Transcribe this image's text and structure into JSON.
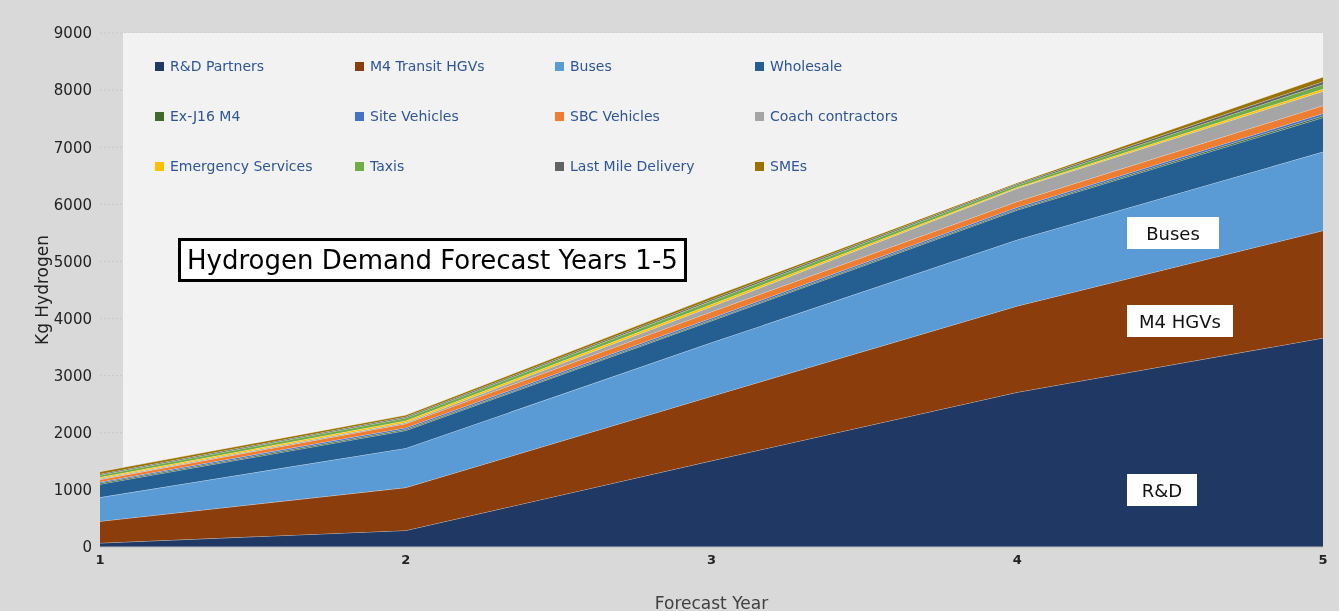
{
  "chart_data": {
    "type": "area",
    "stacked": true,
    "title": "Hydrogen Demand Forecast Years 1-5",
    "xlabel": "Forecast Year",
    "ylabel": "Kg Hydrogen",
    "x": [
      1,
      2,
      3,
      4,
      5
    ],
    "xlim": [
      1,
      5
    ],
    "xticks": [
      1,
      2,
      3,
      4,
      5
    ],
    "ylim": [
      0,
      9000
    ],
    "yticks": [
      0,
      1000,
      2000,
      3000,
      4000,
      5000,
      6000,
      7000,
      8000,
      9000
    ],
    "grid": "y",
    "legend": "top left",
    "series": [
      {
        "name": "R&D Partners",
        "color": "#203864",
        "values": [
          70,
          290,
          1510,
          2710,
          3660
        ]
      },
      {
        "name": "M4 Transit HGVs",
        "color": "#8c3d0c",
        "values": [
          380,
          750,
          1130,
          1510,
          1880
        ]
      },
      {
        "name": "Buses",
        "color": "#5b9bd5",
        "values": [
          420,
          690,
          940,
          1160,
          1380
        ]
      },
      {
        "name": "Wholesale",
        "color": "#255e91",
        "values": [
          230,
          310,
          380,
          520,
          600
        ]
      },
      {
        "name": "Ex-J16 M4",
        "color": "#43682b",
        "values": [
          20,
          20,
          20,
          20,
          30
        ]
      },
      {
        "name": "Site Vehicles",
        "color": "#4472c4",
        "values": [
          20,
          30,
          30,
          30,
          40
        ]
      },
      {
        "name": "SBC Vehicles",
        "color": "#ed7d31",
        "values": [
          40,
          70,
          110,
          100,
          140
        ]
      },
      {
        "name": "Coach contractors",
        "color": "#a5a5a5",
        "values": [
          20,
          20,
          90,
          230,
          250
        ]
      },
      {
        "name": "Emergency Services",
        "color": "#ffc000",
        "values": [
          20,
          30,
          40,
          20,
          40
        ]
      },
      {
        "name": "Taxis",
        "color": "#70ad47",
        "values": [
          40,
          50,
          60,
          40,
          80
        ]
      },
      {
        "name": "Last Mile Delivery",
        "color": "#636363",
        "values": [
          20,
          20,
          30,
          20,
          50
        ]
      },
      {
        "name": "SMEs",
        "color": "#997300",
        "values": [
          40,
          30,
          40,
          20,
          80
        ]
      }
    ],
    "annotations": [
      "Buses",
      "M4 HGVs",
      "R&D"
    ]
  }
}
